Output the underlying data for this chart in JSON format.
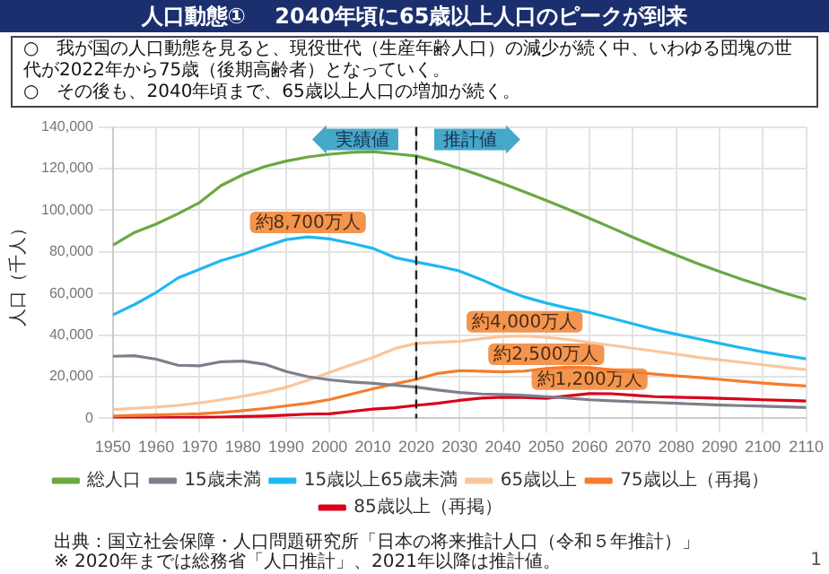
{
  "chart_data": {
    "type": "line",
    "title": "人口動態①　 2040年頃に65歳以上人口のピークが到来",
    "subtitle": "○　我が国の人口動態を見ると、現役世代（生産年齢人口）の減少が続く中、いわゆる団塊の世代が2022年から75歳（後期高齢者）となっていく。\n○　その後も、2040年頃まで、65歳以上人口の増加が続く。",
    "ylabel": "人口（千人）",
    "x": [
      1950,
      1955,
      1960,
      1965,
      1970,
      1975,
      1980,
      1985,
      1990,
      1995,
      2000,
      2005,
      2010,
      2015,
      2020,
      2025,
      2030,
      2035,
      2040,
      2045,
      2050,
      2055,
      2060,
      2065,
      2070,
      2075,
      2080,
      2085,
      2090,
      2095,
      2100,
      2105,
      2110
    ],
    "series": [
      {
        "name": "総人口",
        "color": "#6aa842",
        "values": [
          83200,
          89300,
          93400,
          98300,
          103700,
          111900,
          117100,
          121000,
          123600,
          125600,
          126900,
          127800,
          128100,
          127100,
          126100,
          123300,
          120100,
          116600,
          112800,
          108800,
          104700,
          100500,
          96100,
          91600,
          87000,
          82600,
          78400,
          74300,
          70500,
          66900,
          63500,
          60200,
          57200
        ]
      },
      {
        "name": "15歳未満",
        "color": "#7f7f8c",
        "values": [
          29800,
          30100,
          28400,
          25500,
          25200,
          27200,
          27500,
          26000,
          22500,
          20000,
          18500,
          17500,
          16800,
          15900,
          15000,
          13600,
          12400,
          11700,
          11400,
          11000,
          10400,
          9700,
          8900,
          8400,
          8000,
          7600,
          7200,
          6800,
          6400,
          6100,
          5800,
          5500,
          5200
        ]
      },
      {
        "name": "15歳以上65歳未満",
        "color": "#1fb8f0",
        "values": [
          49700,
          54700,
          60500,
          67400,
          71600,
          75800,
          78800,
          82500,
          85900,
          87200,
          86200,
          84100,
          81700,
          77300,
          75100,
          73100,
          70800,
          66700,
          62100,
          58300,
          55400,
          52900,
          50800,
          48100,
          45400,
          42700,
          40400,
          38200,
          36000,
          33900,
          31900,
          30200,
          28600
        ]
      },
      {
        "name": "65歳以上",
        "color": "#f9c69c",
        "values": [
          4200,
          4800,
          5400,
          6200,
          7400,
          8900,
          10600,
          12500,
          14900,
          18300,
          22000,
          25700,
          29200,
          33500,
          36000,
          36500,
          37000,
          38300,
          39300,
          39500,
          38900,
          37900,
          36400,
          35100,
          33700,
          32300,
          30800,
          29300,
          28100,
          26900,
          25700,
          24500,
          23400
        ]
      },
      {
        "name": "75歳以上（再掲）",
        "color": "#f47c2c",
        "values": [
          1100,
          1400,
          1600,
          1900,
          2200,
          2800,
          3700,
          4700,
          6000,
          7200,
          9000,
          11600,
          14200,
          16500,
          18700,
          21600,
          22900,
          22600,
          22300,
          22700,
          23900,
          24600,
          24400,
          23300,
          22200,
          21200,
          20400,
          19600,
          18700,
          17800,
          16900,
          16200,
          15500
        ]
      },
      {
        "name": "85歳以上（再掲）",
        "color": "#d9001b",
        "values": [
          100,
          200,
          200,
          300,
          400,
          600,
          900,
          1100,
          1500,
          2000,
          2200,
          3300,
          4400,
          5100,
          6200,
          7200,
          8600,
          9700,
          10100,
          10000,
          9600,
          10800,
          11900,
          11800,
          11100,
          10400,
          10100,
          9900,
          9600,
          9300,
          8900,
          8600,
          8300
        ]
      }
    ],
    "xlim": [
      1950,
      2110
    ],
    "xticks": [
      1950,
      1960,
      1970,
      1980,
      1990,
      2000,
      2010,
      2020,
      2030,
      2040,
      2050,
      2060,
      2070,
      2080,
      2090,
      2100,
      2110
    ],
    "ylim": [
      0,
      140000
    ],
    "yticks": [
      0,
      {
        "value": 20000,
        "label": "20,000"
      },
      {
        "value": 40000,
        "label": "40,000"
      },
      {
        "value": 60000,
        "label": "60,000"
      },
      {
        "value": 80000,
        "label": "80,000"
      },
      {
        "value": 100000,
        "label": "100,000"
      },
      {
        "value": 120000,
        "label": "120,000"
      },
      {
        "value": 140000,
        "label": "140,000"
      }
    ],
    "ref_lines": [
      {
        "axis": "x",
        "value": 2020,
        "color": "#222222",
        "line_style": "dashed"
      }
    ],
    "annotations": [
      "実績値",
      "推計値",
      {
        "text": "約8,700万人",
        "x": 1995,
        "y": 87200
      },
      {
        "text": "約4,000万人",
        "x": 2045,
        "y": 39500
      },
      {
        "text": "約2,500万人",
        "x": 2050,
        "y": 23900
      },
      {
        "text": "約1,200万人",
        "x": 2060,
        "y": 11900
      },
      "出典：国立社会保障・人口問題研究所「日本の将来推計人口（令和５年推計）」",
      "※ 2020年までは総務省「人口推計」、2021年以降は推計値。",
      "1"
    ],
    "grid": true,
    "legend": "bottom",
    "marker": "none",
    "line_style": "solid"
  }
}
